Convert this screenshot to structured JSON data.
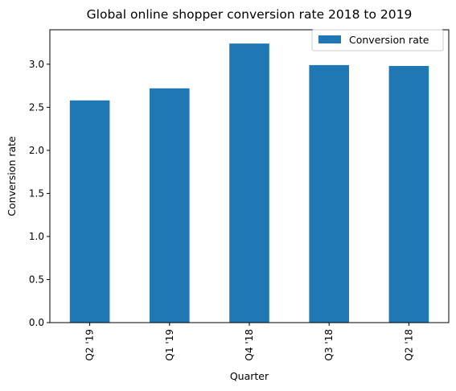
{
  "chart_data": {
    "type": "bar",
    "title": "Global online shopper conversion rate 2018 to 2019",
    "xlabel": "Quarter",
    "ylabel": "Conversion rate",
    "categories": [
      "Q2 '19",
      "Q1 '19",
      "Q4 '18",
      "Q3 '18",
      "Q2 '18"
    ],
    "series": [
      {
        "name": "Conversion rate",
        "values": [
          2.58,
          2.72,
          3.24,
          2.99,
          2.98
        ],
        "color": "#1f77b4"
      }
    ],
    "ylim": [
      0,
      3.4
    ],
    "yticks": [
      "0.0",
      "0.5",
      "1.0",
      "1.5",
      "2.0",
      "2.5",
      "3.0"
    ],
    "legend_position": "top-right",
    "grid": false
  }
}
